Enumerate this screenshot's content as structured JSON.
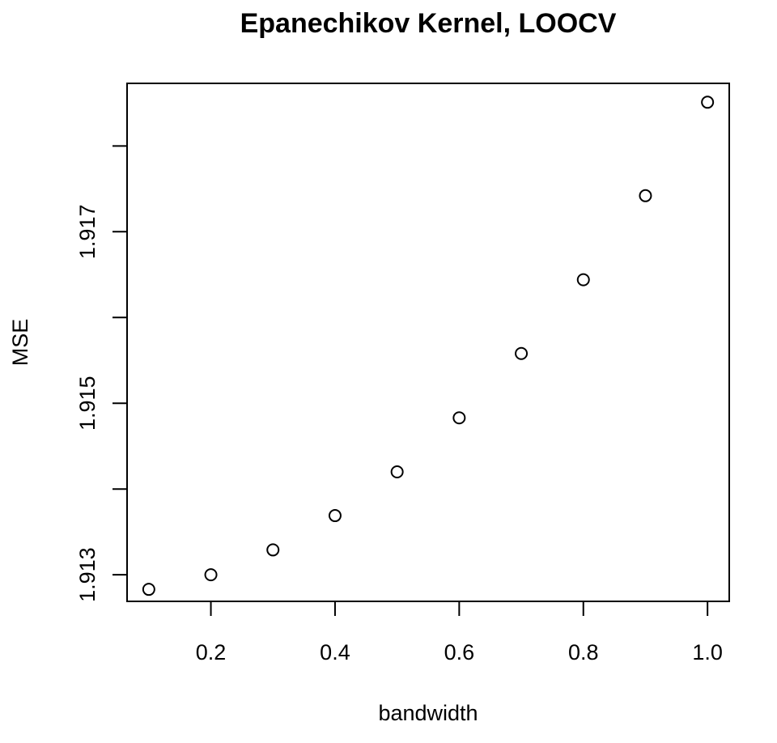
{
  "chart_data": {
    "type": "scatter",
    "title": "Epanechikov Kernel, LOOCV",
    "xlabel": "bandwidth",
    "ylabel": "MSE",
    "x": [
      0.1,
      0.2,
      0.3,
      0.4,
      0.5,
      0.6,
      0.7,
      0.8,
      0.9,
      1.0
    ],
    "y": [
      1.91283,
      1.913,
      1.91329,
      1.91369,
      1.9142,
      1.91483,
      1.91558,
      1.91644,
      1.91742,
      1.91851
    ],
    "xlim": [
      0.065,
      1.035
    ],
    "ylim": [
      1.91269,
      1.91873
    ],
    "x_ticks": [
      0.2,
      0.4,
      0.6,
      0.8,
      1.0
    ],
    "x_tick_labels": [
      "0.2",
      "0.4",
      "0.6",
      "0.8",
      "1.0"
    ],
    "y_ticks": [
      1.913,
      1.914,
      1.915,
      1.916,
      1.917,
      1.918
    ],
    "y_tick_labels": [
      "1.913",
      "",
      "1.915",
      "",
      "1.917",
      ""
    ],
    "grid": false,
    "marker": "open-circle"
  }
}
